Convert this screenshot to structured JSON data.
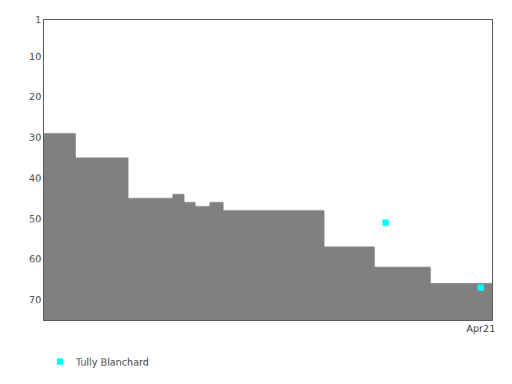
{
  "chart_data": {
    "type": "line",
    "series": [
      {
        "type": "area",
        "color": "#808080",
        "x": [
          0,
          28,
          28,
          75,
          75,
          115,
          115,
          125,
          125,
          135,
          135,
          148,
          148,
          160,
          160,
          250,
          250,
          295,
          295,
          345,
          345,
          400
        ],
        "values": [
          29,
          29,
          35,
          35,
          45,
          45,
          44,
          44,
          46,
          46,
          47,
          47,
          46,
          46,
          48,
          48,
          57,
          57,
          62,
          62,
          66,
          66
        ]
      },
      {
        "type": "scatter",
        "name": "Tully Blanchard",
        "color": "#00ffff",
        "marker": "square",
        "x": [
          305,
          390
        ],
        "values": [
          51,
          67
        ]
      }
    ],
    "xlim": [
      0,
      400
    ],
    "xticks": [
      {
        "value": 390,
        "label": "Apr21"
      }
    ],
    "ylim": [
      75,
      1
    ],
    "yticks": [
      1,
      10,
      20,
      30,
      40,
      50,
      60,
      70
    ],
    "grid": false,
    "legend": "lower left"
  }
}
